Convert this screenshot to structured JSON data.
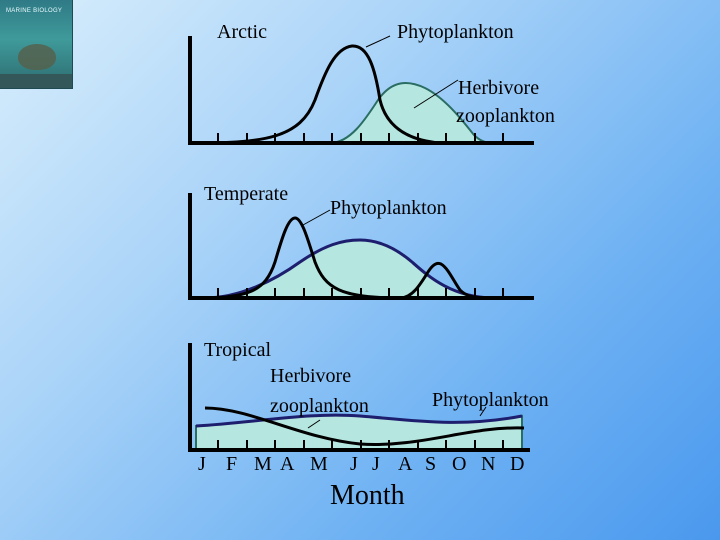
{
  "cover": {
    "title": "MARINE BIOLOGY"
  },
  "arctic": {
    "region": "Arctic",
    "phyto": "Phytoplankton",
    "zoo_line1": "Herbivore",
    "zoo_line2": "zooplankton"
  },
  "temperate": {
    "region": "Temperate",
    "phyto": "Phytoplankton"
  },
  "tropical": {
    "region": "Tropical",
    "zoo_line1": "Herbivore",
    "zoo_line2": "zooplankton",
    "phyto": "Phytoplankton"
  },
  "months": [
    "J",
    "F",
    "M",
    "A",
    "M",
    "J",
    "J",
    "A",
    "S",
    "O",
    "N",
    "D"
  ],
  "xlabel": "Month",
  "colors": {
    "zoo_fill": "#b5e6df",
    "zoo_line": "#1e1e6e",
    "phyto_line": "#000000"
  }
}
